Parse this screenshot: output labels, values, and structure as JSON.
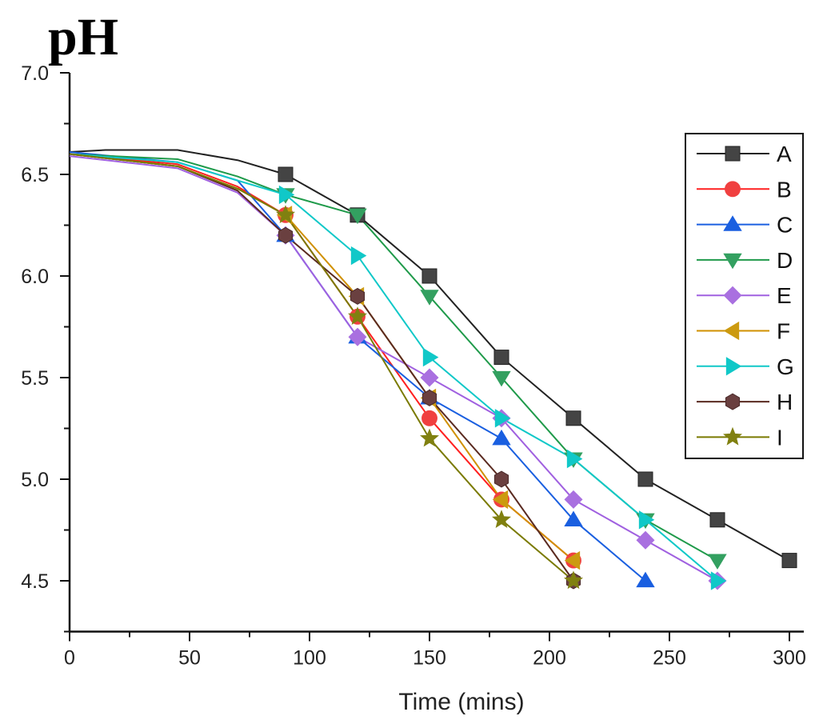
{
  "chart_data": {
    "type": "line",
    "title": "pH",
    "xlabel": "Time (mins)",
    "ylabel": "pH",
    "xlim": [
      0,
      306
    ],
    "ylim": [
      4.25,
      7.0
    ],
    "xticks": [
      0,
      50,
      100,
      150,
      200,
      250,
      300
    ],
    "xtick_labels": [
      "0",
      "50",
      "100",
      "150",
      "200",
      "250",
      "300"
    ],
    "yticks": [
      4.5,
      5.0,
      5.5,
      6.0,
      6.5,
      7.0
    ],
    "ytick_labels": [
      "4.5",
      "5.0",
      "5.5",
      "6.0",
      "6.5",
      "7.0"
    ],
    "grid": false,
    "legend_position": "right",
    "series": [
      {
        "name": "A",
        "color": "#222222",
        "marker_color": "#444444",
        "marker": "square",
        "line": [
          [
            0,
            6.61
          ],
          [
            15,
            6.62
          ],
          [
            45,
            6.62
          ],
          [
            70,
            6.57
          ]
        ],
        "x": [
          90,
          120,
          150,
          180,
          210,
          240,
          270,
          300
        ],
        "y": [
          6.5,
          6.3,
          6.0,
          5.6,
          5.3,
          5.0,
          4.8,
          4.6
        ]
      },
      {
        "name": "B",
        "color": "#ff2020",
        "marker_color": "#f04040",
        "marker": "circle",
        "line": [
          [
            0,
            6.6
          ],
          [
            45,
            6.55
          ],
          [
            70,
            6.44
          ]
        ],
        "x": [
          90,
          120,
          150,
          180,
          210
        ],
        "y": [
          6.3,
          5.8,
          5.3,
          4.9,
          4.6
        ]
      },
      {
        "name": "C",
        "color": "#1a5fe0",
        "marker_color": "#1a5fe0",
        "marker": "triangle-up",
        "line": [
          [
            0,
            6.61
          ],
          [
            45,
            6.56
          ],
          [
            70,
            6.47
          ]
        ],
        "x": [
          90,
          120,
          150,
          180,
          210,
          240
        ],
        "y": [
          6.2,
          5.7,
          5.4,
          5.2,
          4.8,
          4.5
        ]
      },
      {
        "name": "D",
        "color": "#1f9a4a",
        "marker_color": "#33a060",
        "marker": "triangle-down",
        "line": [
          [
            0,
            6.6
          ],
          [
            45,
            6.575
          ],
          [
            70,
            6.49
          ]
        ],
        "x": [
          90,
          120,
          150,
          180,
          210,
          240,
          270
        ],
        "y": [
          6.4,
          6.3,
          5.9,
          5.5,
          5.1,
          4.8,
          4.6
        ]
      },
      {
        "name": "E",
        "color": "#a060e0",
        "marker_color": "#a970e0",
        "marker": "diamond",
        "line": [
          [
            0,
            6.59
          ],
          [
            45,
            6.53
          ],
          [
            70,
            6.41
          ]
        ],
        "x": [
          90,
          120,
          150,
          180,
          210,
          240,
          270
        ],
        "y": [
          6.2,
          5.7,
          5.5,
          5.3,
          4.9,
          4.7,
          4.5
        ]
      },
      {
        "name": "F",
        "color": "#d09000",
        "marker_color": "#cc9a10",
        "marker": "triangle-left",
        "line": [
          [
            0,
            6.6
          ],
          [
            45,
            6.54
          ],
          [
            70,
            6.43
          ]
        ],
        "x": [
          90,
          120,
          150,
          180,
          210
        ],
        "y": [
          6.3,
          5.9,
          5.4,
          4.9,
          4.6
        ]
      },
      {
        "name": "G",
        "color": "#10c8c8",
        "marker_color": "#10c8c8",
        "marker": "triangle-right",
        "line": [
          [
            0,
            6.6
          ],
          [
            45,
            6.56
          ],
          [
            70,
            6.47
          ]
        ],
        "x": [
          90,
          120,
          150,
          180,
          210,
          240,
          270
        ],
        "y": [
          6.4,
          6.1,
          5.6,
          5.3,
          5.1,
          4.8,
          4.5
        ]
      },
      {
        "name": "H",
        "color": "#5a2a20",
        "marker_color": "#6a4040",
        "marker": "hexagon",
        "line": [
          [
            0,
            6.6
          ],
          [
            45,
            6.54
          ],
          [
            70,
            6.42
          ]
        ],
        "x": [
          90,
          120,
          150,
          180,
          210
        ],
        "y": [
          6.2,
          5.9,
          5.4,
          5.0,
          4.5
        ]
      },
      {
        "name": "I",
        "color": "#7a7a00",
        "marker_color": "#808010",
        "marker": "star",
        "line": [
          [
            0,
            6.6
          ],
          [
            45,
            6.54
          ],
          [
            70,
            6.43
          ]
        ],
        "x": [
          90,
          120,
          150,
          180,
          210
        ],
        "y": [
          6.3,
          5.8,
          5.2,
          4.8,
          4.5
        ]
      }
    ]
  }
}
